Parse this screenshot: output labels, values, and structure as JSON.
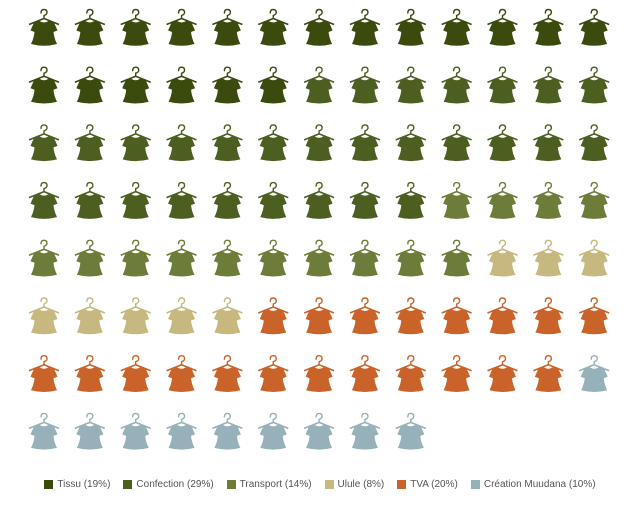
{
  "chart_data": {
    "type": "waffle",
    "title": "",
    "unit_icon": "shirt-on-hanger-icon",
    "total_units": 100,
    "columns": 13,
    "series": [
      {
        "name": "Tissu",
        "percent": 19,
        "color": "#3b4a0d"
      },
      {
        "name": "Confection",
        "percent": 29,
        "color": "#4d5e21"
      },
      {
        "name": "Transport",
        "percent": 14,
        "color": "#6d7d39"
      },
      {
        "name": "Ulule",
        "percent": 8,
        "color": "#c6b87e"
      },
      {
        "name": "TVA",
        "percent": 20,
        "color": "#c96329"
      },
      {
        "name": "Création Muudana",
        "percent": 10,
        "color": "#96b1b9"
      }
    ]
  },
  "legend": {
    "items": [
      {
        "label": "Tissu (19%)",
        "color": "#3b4a0d"
      },
      {
        "label": "Confection (29%)",
        "color": "#4d5e21"
      },
      {
        "label": "Transport (14%)",
        "color": "#6d7d39"
      },
      {
        "label": "Ulule (8%)",
        "color": "#c6b87e"
      },
      {
        "label": "TVA (20%)",
        "color": "#c96329"
      },
      {
        "label": "Création Muudana (10%)",
        "color": "#96b1b9"
      }
    ]
  }
}
